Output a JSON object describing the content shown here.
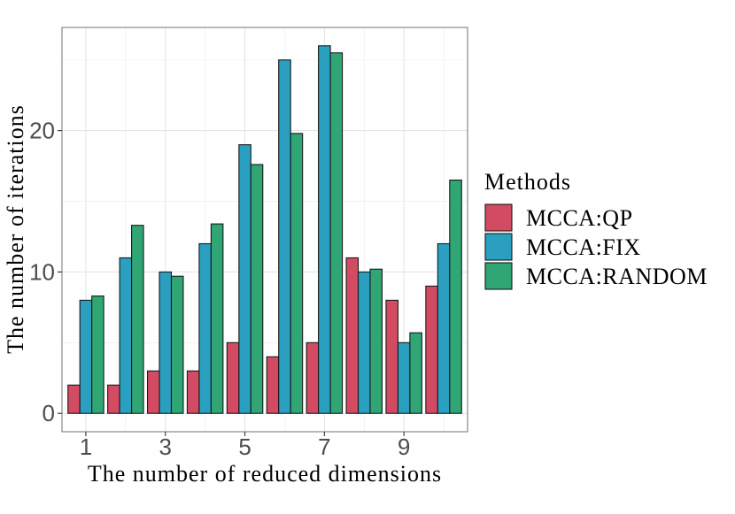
{
  "chart_data": {
    "type": "bar",
    "x": [
      1,
      2,
      3,
      4,
      5,
      6,
      7,
      8,
      9,
      10
    ],
    "x_tick_labels": [
      "1",
      "3",
      "5",
      "7",
      "9"
    ],
    "x_tick_values": [
      1,
      3,
      5,
      7,
      9
    ],
    "y_tick_labels": [
      "0",
      "10",
      "20"
    ],
    "y_tick_values": [
      0,
      10,
      20
    ],
    "xlabel": "The number of reduced dimensions",
    "ylabel": "The number of iterations",
    "xlim": [
      0.4,
      10.6
    ],
    "ylim": [
      -1.3,
      27.3
    ],
    "grid": true,
    "legend_position": "right",
    "legend_title": "Methods",
    "series": [
      {
        "name": "MCCA:QP",
        "color": "#d24b62",
        "values": [
          2,
          2,
          3,
          3,
          5,
          4,
          5,
          11,
          8,
          9
        ]
      },
      {
        "name": "MCCA:FIX",
        "color": "#2a9fc0",
        "values": [
          8,
          11,
          10,
          12,
          19,
          25,
          26,
          10,
          5,
          12
        ]
      },
      {
        "name": "MCCA:RANDOM",
        "color": "#2fa673",
        "values": [
          8.3,
          13.3,
          9.7,
          13.4,
          17.6,
          19.8,
          25.5,
          10.2,
          5.7,
          16.5
        ]
      }
    ]
  }
}
